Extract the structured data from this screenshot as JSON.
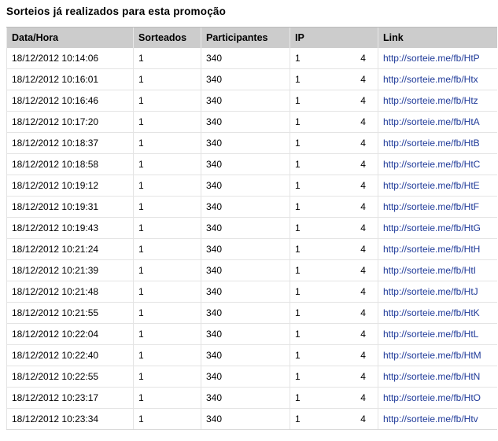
{
  "title": "Sorteios já realizados para esta promoção",
  "columns": [
    "Data/Hora",
    "Sorteados",
    "Participantes",
    "IP",
    "Link"
  ],
  "colors": {
    "header_bg": "#cccccc",
    "link": "#1f3a99"
  },
  "rows": [
    {
      "datetime": "18/12/2012 10:14:06",
      "sorteados": "1",
      "participantes": "340",
      "ip": "1",
      "ip2": "4",
      "link": "http://sorteie.me/fb/HtP"
    },
    {
      "datetime": "18/12/2012 10:16:01",
      "sorteados": "1",
      "participantes": "340",
      "ip": "1",
      "ip2": "4",
      "link": "http://sorteie.me/fb/Htx"
    },
    {
      "datetime": "18/12/2012 10:16:46",
      "sorteados": "1",
      "participantes": "340",
      "ip": "1",
      "ip2": "4",
      "link": "http://sorteie.me/fb/Htz"
    },
    {
      "datetime": "18/12/2012 10:17:20",
      "sorteados": "1",
      "participantes": "340",
      "ip": "1",
      "ip2": "4",
      "link": "http://sorteie.me/fb/HtA"
    },
    {
      "datetime": "18/12/2012 10:18:37",
      "sorteados": "1",
      "participantes": "340",
      "ip": "1",
      "ip2": "4",
      "link": "http://sorteie.me/fb/HtB"
    },
    {
      "datetime": "18/12/2012 10:18:58",
      "sorteados": "1",
      "participantes": "340",
      "ip": "1",
      "ip2": "4",
      "link": "http://sorteie.me/fb/HtC"
    },
    {
      "datetime": "18/12/2012 10:19:12",
      "sorteados": "1",
      "participantes": "340",
      "ip": "1",
      "ip2": "4",
      "link": "http://sorteie.me/fb/HtE"
    },
    {
      "datetime": "18/12/2012 10:19:31",
      "sorteados": "1",
      "participantes": "340",
      "ip": "1",
      "ip2": "4",
      "link": "http://sorteie.me/fb/HtF"
    },
    {
      "datetime": "18/12/2012 10:19:43",
      "sorteados": "1",
      "participantes": "340",
      "ip": "1",
      "ip2": "4",
      "link": "http://sorteie.me/fb/HtG"
    },
    {
      "datetime": "18/12/2012 10:21:24",
      "sorteados": "1",
      "participantes": "340",
      "ip": "1",
      "ip2": "4",
      "link": "http://sorteie.me/fb/HtH"
    },
    {
      "datetime": "18/12/2012 10:21:39",
      "sorteados": "1",
      "participantes": "340",
      "ip": "1",
      "ip2": "4",
      "link": "http://sorteie.me/fb/HtI"
    },
    {
      "datetime": "18/12/2012 10:21:48",
      "sorteados": "1",
      "participantes": "340",
      "ip": "1",
      "ip2": "4",
      "link": "http://sorteie.me/fb/HtJ"
    },
    {
      "datetime": "18/12/2012 10:21:55",
      "sorteados": "1",
      "participantes": "340",
      "ip": "1",
      "ip2": "4",
      "link": "http://sorteie.me/fb/HtK"
    },
    {
      "datetime": "18/12/2012 10:22:04",
      "sorteados": "1",
      "participantes": "340",
      "ip": "1",
      "ip2": "4",
      "link": "http://sorteie.me/fb/HtL"
    },
    {
      "datetime": "18/12/2012 10:22:40",
      "sorteados": "1",
      "participantes": "340",
      "ip": "1",
      "ip2": "4",
      "link": "http://sorteie.me/fb/HtM"
    },
    {
      "datetime": "18/12/2012 10:22:55",
      "sorteados": "1",
      "participantes": "340",
      "ip": "1",
      "ip2": "4",
      "link": "http://sorteie.me/fb/HtN"
    },
    {
      "datetime": "18/12/2012 10:23:17",
      "sorteados": "1",
      "participantes": "340",
      "ip": "1",
      "ip2": "4",
      "link": "http://sorteie.me/fb/HtO"
    },
    {
      "datetime": "18/12/2012 10:23:34",
      "sorteados": "1",
      "participantes": "340",
      "ip": "1",
      "ip2": "4",
      "link": "http://sorteie.me/fb/Htv"
    }
  ]
}
